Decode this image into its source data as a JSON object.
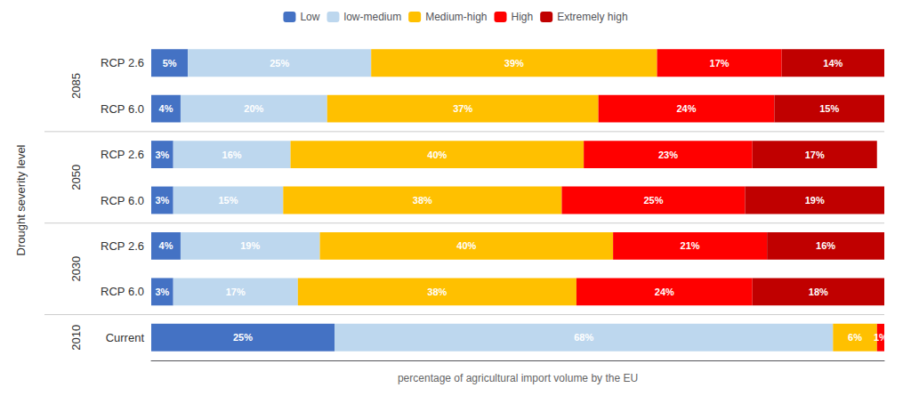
{
  "chart_data": {
    "type": "bar",
    "orientation": "horizontal",
    "stacked": true,
    "data_labels": true,
    "grid": false,
    "tick_labels": "y",
    "legend": "top",
    "xlabel": "percentage of agricultural import volume by the EU",
    "ylabel": "Drought severity level",
    "categories": [
      "RCP 2.6",
      "RCP 6.0",
      "RCP 2.6",
      "RCP 6.0",
      "RCP 2.6",
      "RCP 6.0",
      "Current"
    ],
    "groups": [
      "2085",
      "2085",
      "2050",
      "2050",
      "2030",
      "2030",
      "2010"
    ],
    "xlim": [
      0,
      100
    ],
    "series": [
      {
        "name": "Low",
        "color": "#4472C4",
        "values": [
          5,
          4,
          3,
          3,
          4,
          3,
          25
        ],
        "value_labels": [
          "5%",
          "4%",
          "3%",
          "3%",
          "4%",
          "3%",
          "25%"
        ]
      },
      {
        "name": "low-medium",
        "color": "#BDD7EE",
        "values": [
          25,
          20,
          16,
          15,
          19,
          17,
          68
        ],
        "value_labels": [
          "25%",
          "20%",
          "16%",
          "15%",
          "19%",
          "17%",
          "68%"
        ]
      },
      {
        "name": "Medium-high",
        "color": "#FFC000",
        "values": [
          39,
          37,
          40,
          38,
          40,
          38,
          6
        ],
        "value_labels": [
          "39%",
          "37%",
          "40%",
          "38%",
          "40%",
          "38%",
          "6%"
        ]
      },
      {
        "name": "High",
        "color": "#FF0000",
        "values": [
          17,
          24,
          23,
          25,
          21,
          24,
          1
        ],
        "value_labels": [
          "17%",
          "24%",
          "23%",
          "25%",
          "21%",
          "24%",
          "1%"
        ]
      },
      {
        "name": "Extremely high",
        "color": "#C00000",
        "values": [
          14,
          15,
          17,
          19,
          16,
          18,
          0
        ],
        "value_labels": [
          "14%",
          "15%",
          "17%",
          "19%",
          "16%",
          "18%",
          null
        ]
      }
    ]
  }
}
